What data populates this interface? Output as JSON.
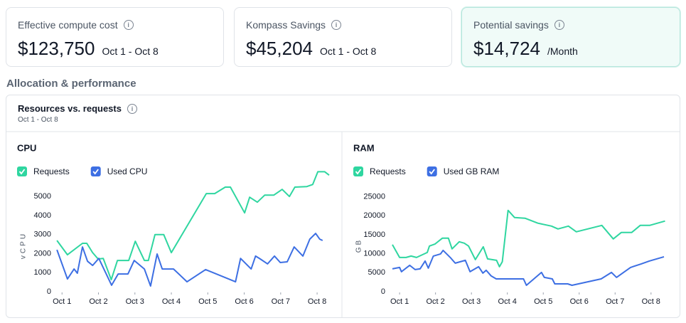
{
  "cards": [
    {
      "label": "Effective compute cost",
      "value": "$123,750",
      "period": "Oct 1 - Oct 8"
    },
    {
      "label": "Kompass Savings",
      "value": "$45,204",
      "period": "Oct 1 - Oct 8"
    },
    {
      "label": "Potential savings",
      "value": "$14,724",
      "period": "/Month"
    }
  ],
  "section_title": "Allocation & performance",
  "panel": {
    "title": "Resources vs. requests",
    "subtitle": "Oct 1 - Oct 8"
  },
  "chart_data": [
    {
      "type": "line",
      "title": "CPU",
      "ylabel": "vCPU",
      "xlim": [
        0.8,
        8.33
      ],
      "ylim": [
        0,
        6500
      ],
      "xticks": [
        {
          "value": 1,
          "label": "Oct 1"
        },
        {
          "value": 2,
          "label": "Oct 2"
        },
        {
          "value": 3,
          "label": "Oct 3"
        },
        {
          "value": 4,
          "label": "Oct 4"
        },
        {
          "value": 5,
          "label": "Oct 5"
        },
        {
          "value": 6,
          "label": "Oct 6"
        },
        {
          "value": 7,
          "label": "Oct 7"
        },
        {
          "value": 8,
          "label": "Oct 8"
        }
      ],
      "yticks": [
        0,
        1000,
        2000,
        3000,
        4000,
        5000
      ],
      "series": [
        {
          "name": "Requests",
          "color": "#2fd6a0",
          "x": [
            0.86,
            1.15,
            1.56,
            1.68,
            1.84,
            1.99,
            2.13,
            2.35,
            2.52,
            2.83,
            3.01,
            3.26,
            3.37,
            3.55,
            3.79,
            4.0,
            4.96,
            5.19,
            5.48,
            5.62,
            6.01,
            6.15,
            6.36,
            6.56,
            6.81,
            7.04,
            7.24,
            7.39,
            7.72,
            7.88,
            8.02,
            8.21,
            8.33
          ],
          "values": [
            2690,
            1940,
            2540,
            2540,
            2050,
            1720,
            1750,
            630,
            1640,
            1640,
            2650,
            1640,
            1640,
            3000,
            3000,
            2050,
            5150,
            5150,
            5490,
            5490,
            4140,
            4960,
            4700,
            5070,
            5070,
            5370,
            5000,
            5490,
            5520,
            5630,
            6300,
            6300,
            6120
          ]
        },
        {
          "name": "Used CPU",
          "color": "#3d6fe3",
          "x": [
            0.86,
            1.15,
            1.33,
            1.42,
            1.56,
            1.7,
            1.84,
            2.01,
            2.36,
            2.54,
            2.81,
            2.98,
            3.26,
            3.43,
            3.61,
            3.75,
            4.06,
            4.43,
            4.94,
            5.76,
            5.9,
            6.19,
            6.31,
            6.44,
            6.64,
            6.83,
            6.99,
            7.18,
            7.37,
            7.61,
            7.8,
            7.96,
            8.07,
            8.15
          ],
          "values": [
            2200,
            670,
            1190,
            970,
            2350,
            1600,
            1380,
            1750,
            340,
            930,
            930,
            1640,
            1190,
            300,
            1980,
            1190,
            1190,
            520,
            1160,
            520,
            1750,
            1190,
            1870,
            1720,
            1460,
            1870,
            1530,
            1570,
            2350,
            1870,
            2760,
            3060,
            2760,
            2690
          ]
        }
      ]
    },
    {
      "type": "line",
      "title": "RAM",
      "ylabel": "GB",
      "xlim": [
        0.76,
        8.4
      ],
      "ylim": [
        0,
        27000
      ],
      "xticks": [
        {
          "value": 1,
          "label": "Oct 1"
        },
        {
          "value": 2,
          "label": "Oct 2"
        },
        {
          "value": 3,
          "label": "Oct 3"
        },
        {
          "value": 4,
          "label": "Oct 4"
        },
        {
          "value": 5,
          "label": "Oct 5"
        },
        {
          "value": 6,
          "label": "Oct 6"
        },
        {
          "value": 7,
          "label": "Oct 7"
        },
        {
          "value": 8,
          "label": "Oct 8"
        }
      ],
      "yticks": [
        0,
        5000,
        10000,
        15000,
        20000,
        25000
      ],
      "series": [
        {
          "name": "Requests",
          "color": "#2fd6a0",
          "x": [
            0.8,
            1.0,
            1.18,
            1.32,
            1.47,
            1.77,
            1.83,
            1.99,
            2.19,
            2.36,
            2.46,
            2.66,
            2.8,
            2.92,
            3.11,
            3.33,
            3.45,
            3.7,
            3.78,
            3.86,
            4.02,
            4.2,
            4.49,
            4.85,
            5.23,
            5.41,
            5.7,
            5.92,
            6.63,
            6.95,
            7.17,
            7.46,
            7.7,
            7.96,
            8.39
          ],
          "values": [
            12400,
            9020,
            9020,
            9400,
            9020,
            10340,
            12030,
            12590,
            14100,
            14100,
            11280,
            13160,
            12780,
            12030,
            8460,
            11840,
            8650,
            8270,
            6580,
            7890,
            21430,
            19550,
            19360,
            18050,
            17290,
            16540,
            17290,
            15790,
            17480,
            13910,
            15600,
            15600,
            17480,
            17480,
            18610
          ]
        },
        {
          "name": "Used GB RAM",
          "color": "#3d6fe3",
          "x": [
            0.8,
            1.0,
            1.05,
            1.28,
            1.43,
            1.57,
            1.71,
            1.8,
            1.94,
            2.14,
            2.21,
            2.41,
            2.55,
            2.83,
            2.96,
            3.2,
            3.32,
            3.41,
            3.55,
            3.69,
            3.86,
            4.02,
            4.45,
            4.53,
            4.95,
            5.03,
            5.25,
            5.32,
            5.68,
            5.8,
            6.61,
            6.9,
            7.04,
            7.43,
            7.73,
            7.95,
            8.36
          ],
          "values": [
            6020,
            6390,
            5260,
            6950,
            5830,
            6020,
            8080,
            6200,
            9400,
            9960,
            10900,
            9020,
            7520,
            8270,
            5260,
            6580,
            4890,
            5640,
            4140,
            3380,
            3380,
            3380,
            3380,
            1690,
            5080,
            3760,
            3380,
            2070,
            2070,
            1690,
            3380,
            5080,
            3760,
            6390,
            7330,
            8080,
            9210
          ]
        }
      ]
    }
  ]
}
